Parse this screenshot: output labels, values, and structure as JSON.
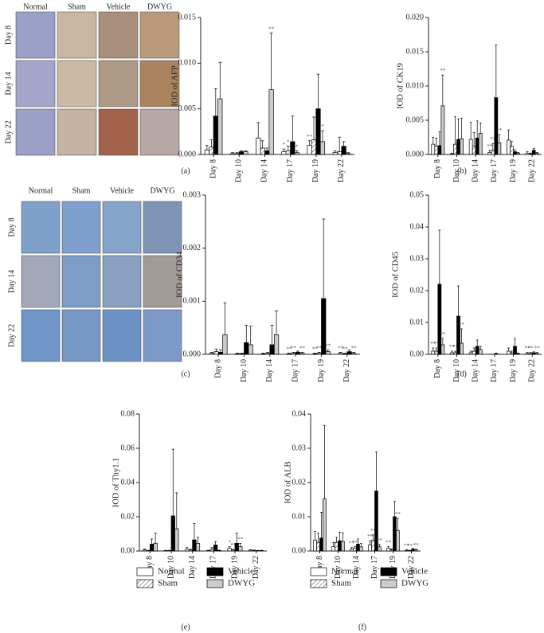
{
  "image_panels": [
    {
      "columns": [
        "Normal",
        "Sham",
        "Vehicle",
        "DWYG"
      ],
      "rows": [
        "Day 8",
        "Day 14",
        "Day 22"
      ]
    },
    {
      "columns": [
        "Normal",
        "Sham",
        "Vehicle",
        "DWYG"
      ],
      "rows": [
        "Day 8",
        "Day 14",
        "Day 22"
      ]
    }
  ],
  "chart_data": [
    {
      "type": "bar",
      "panel_label": "(a)",
      "y_label": "IOD of AFP",
      "categories": [
        "Day 8",
        "Day 10",
        "Day 14",
        "Day 17",
        "Day 19",
        "Day 22"
      ],
      "ylim": [
        0,
        0.015
      ],
      "yticks": [
        {
          "value": 0,
          "label": "0.000"
        },
        {
          "value": 0.005,
          "label": "0.005"
        },
        {
          "value": 0.01,
          "label": "0.010"
        },
        {
          "value": 0.015,
          "label": "0.015"
        }
      ],
      "legend": false,
      "series": [
        {
          "name": "Normal",
          "color": "#ffffff",
          "values": [
            0.0005,
            0.0001,
            0.0018,
            0.0003,
            0.001,
            0.0002
          ],
          "errors": [
            0.0005,
            0.0001,
            0.0017,
            0.0003,
            0.0005,
            0.0002
          ],
          "significance": [
            null,
            null,
            null,
            "*",
            "**",
            null
          ]
        },
        {
          "name": "Sham",
          "color": "#ffffff",
          "pattern": "hatch",
          "values": [
            0.0008,
            0.0001,
            0.0007,
            0.0004,
            0.0016,
            0.0003
          ],
          "errors": [
            0.0008,
            0.0001,
            0.0008,
            0.0005,
            0.0025,
            0.0016
          ],
          "significance": [
            null,
            null,
            null,
            "*",
            null,
            null
          ]
        },
        {
          "name": "Vehicle",
          "color": "#000000",
          "values": [
            0.0042,
            0.0003,
            0.0004,
            0.0014,
            0.005,
            0.0009
          ],
          "errors": [
            0.003,
            0.0001,
            0.0003,
            0.0028,
            0.0038,
            0.0005
          ],
          "significance": [
            null,
            null,
            null,
            null,
            null,
            null
          ]
        },
        {
          "name": "DWYG",
          "color": "#cccccc",
          "values": [
            0.0061,
            0.0003,
            0.0071,
            0.0002,
            0.0014,
            0.0001
          ],
          "errors": [
            0.004,
            0.0001,
            0.0062,
            0.0002,
            0.0012,
            0.0001
          ],
          "significance": [
            null,
            null,
            "**",
            "*",
            "*",
            null
          ]
        }
      ]
    },
    {
      "type": "bar",
      "panel_label": "(b)",
      "y_label": "IOD of CK19",
      "categories": [
        "Day 8",
        "Day 10",
        "Day 14",
        "Day 17",
        "Day 19",
        "Day 22"
      ],
      "ylim": [
        0,
        0.02
      ],
      "yticks": [
        {
          "value": 0,
          "label": "0.000"
        },
        {
          "value": 0.005,
          "label": "0.005"
        },
        {
          "value": 0.01,
          "label": "0.010"
        },
        {
          "value": 0.015,
          "label": "0.015"
        },
        {
          "value": 0.02,
          "label": "0.020"
        }
      ],
      "legend": false,
      "series": [
        {
          "name": "Normal",
          "color": "#ffffff",
          "values": [
            0.0015,
            0.0001,
            0.0022,
            0.0003,
            0.0021,
            0.0002
          ],
          "errors": [
            0.001,
            0.0001,
            0.0025,
            0.0003,
            0.0015,
            0.0002
          ],
          "significance": [
            null,
            null,
            null,
            "**",
            null,
            null
          ]
        },
        {
          "name": "Sham",
          "color": "#ffffff",
          "pattern": "hatch",
          "values": [
            0.0012,
            0.0015,
            0.0012,
            0.0006,
            0.0012,
            0.0001
          ],
          "errors": [
            0.0012,
            0.004,
            0.002,
            0.001,
            0.0007,
            0.0001
          ],
          "significance": [
            null,
            null,
            null,
            "**",
            null,
            null
          ]
        },
        {
          "name": "Vehicle",
          "color": "#000000",
          "values": [
            0.0013,
            0.0022,
            0.0024,
            0.0083,
            0.0004,
            0.0006
          ],
          "errors": [
            0.002,
            0.003,
            0.0025,
            0.0077,
            0.0003,
            0.0003
          ],
          "significance": [
            null,
            null,
            null,
            null,
            null,
            null
          ]
        },
        {
          "name": "DWYG",
          "color": "#cccccc",
          "values": [
            0.0071,
            0.0023,
            0.0031,
            0.0017,
            0.0002,
            0.0002
          ],
          "errors": [
            0.0045,
            0.003,
            0.0015,
            0.0012,
            0.0001,
            0.0001
          ],
          "significance": [
            "**",
            null,
            null,
            "**",
            null,
            null
          ]
        }
      ]
    },
    {
      "type": "bar",
      "panel_label": "(c)",
      "y_label": "IOD of CD34",
      "categories": [
        "Day 8",
        "Day 10",
        "Day 14",
        "Day 17",
        "Day 19",
        "Day 22"
      ],
      "ylim": [
        0,
        0.003
      ],
      "yticks": [
        {
          "value": 0,
          "label": "0.000"
        },
        {
          "value": 0.001,
          "label": "0.001"
        },
        {
          "value": 0.002,
          "label": "0.002"
        },
        {
          "value": 0.003,
          "label": "0.003"
        }
      ],
      "legend": false,
      "series": [
        {
          "name": "Normal",
          "color": "#ffffff",
          "values": [
            2e-05,
            1e-05,
            1e-05,
            1e-05,
            1e-05,
            2e-05
          ],
          "errors": [
            2e-05,
            1e-05,
            1e-05,
            1e-05,
            1e-05,
            2e-05
          ],
          "significance": [
            null,
            null,
            null,
            "**",
            "**",
            "**"
          ]
        },
        {
          "name": "Sham",
          "color": "#ffffff",
          "pattern": "hatch",
          "values": [
            5e-05,
            1e-05,
            2e-05,
            2e-05,
            2e-05,
            1e-05
          ],
          "errors": [
            5e-05,
            1e-05,
            2e-05,
            2e-05,
            2e-05,
            1e-05
          ],
          "significance": [
            null,
            null,
            null,
            "**",
            "**",
            "**"
          ]
        },
        {
          "name": "Vehicle",
          "color": "#000000",
          "values": [
            4e-05,
            0.00022,
            0.00018,
            4e-05,
            0.00105,
            5e-05
          ],
          "errors": [
            4e-05,
            0.00033,
            0.00037,
            2e-05,
            0.0015,
            3e-05
          ],
          "significance": [
            null,
            null,
            null,
            null,
            null,
            null
          ]
        },
        {
          "name": "DWYG",
          "color": "#cccccc",
          "values": [
            0.00037,
            0.00018,
            0.00037,
            2e-05,
            5e-05,
            2e-05
          ],
          "errors": [
            0.0006,
            0.00035,
            0.00045,
            2e-05,
            3e-05,
            2e-05
          ],
          "significance": [
            null,
            null,
            null,
            "**",
            "**",
            "**"
          ]
        }
      ]
    },
    {
      "type": "bar",
      "panel_label": "(d)",
      "y_label": "IOD of CD45",
      "categories": [
        "Day 8",
        "Day 10",
        "Day 14",
        "Day 17",
        "Day 19",
        "Day 22"
      ],
      "ylim": [
        0,
        0.05
      ],
      "yticks": [
        {
          "value": 0,
          "label": "0.00"
        },
        {
          "value": 0.01,
          "label": "0.01"
        },
        {
          "value": 0.02,
          "label": "0.02"
        },
        {
          "value": 0.03,
          "label": "0.03"
        },
        {
          "value": 0.04,
          "label": "0.04"
        },
        {
          "value": 0.05,
          "label": "0.05"
        }
      ],
      "legend": false,
      "series": [
        {
          "name": "Normal",
          "color": "#ffffff",
          "values": [
            0.001,
            0.0005,
            0.0005,
            0,
            0.001,
            0.0003
          ],
          "errors": [
            0.001,
            0.0005,
            0.0005,
            0,
            0.001,
            0.0003
          ],
          "significance": [
            "**",
            "**",
            null,
            null,
            null,
            "**"
          ]
        },
        {
          "name": "Sham",
          "color": "#ffffff",
          "pattern": "hatch",
          "values": [
            0.001,
            0.0005,
            0.001,
            0,
            0.0005,
            0.0003
          ],
          "errors": [
            0.001,
            0.0005,
            0.001,
            0,
            0.0005,
            0.0003
          ],
          "significance": [
            "**",
            "**",
            null,
            null,
            null,
            "**"
          ]
        },
        {
          "name": "Vehicle",
          "color": "#000000",
          "values": [
            0.022,
            0.012,
            0.0025,
            0.0002,
            0.0025,
            0.0005
          ],
          "errors": [
            0.017,
            0.0095,
            0.002,
            0.0002,
            0.0025,
            0.0003
          ],
          "significance": [
            null,
            null,
            null,
            null,
            null,
            null
          ]
        },
        {
          "name": "DWYG",
          "color": "#cccccc",
          "values": [
            0.003,
            0.0035,
            0.0015,
            0,
            0.0002,
            0.0003
          ],
          "errors": [
            0.002,
            0.0045,
            0.001,
            0,
            0.0002,
            0.0003
          ],
          "significance": [
            "**",
            "**",
            null,
            null,
            null,
            "**"
          ]
        }
      ]
    },
    {
      "type": "bar",
      "panel_label": "(e)",
      "y_label": "IOD of Thy1.1",
      "categories": [
        "Day 8",
        "Day 10",
        "Day 14",
        "Day 17",
        "Day 19",
        "Day 22"
      ],
      "ylim": [
        0,
        0.08
      ],
      "yticks": [
        {
          "value": 0,
          "label": "0.00"
        },
        {
          "value": 0.02,
          "label": "0.02"
        },
        {
          "value": 0.04,
          "label": "0.04"
        },
        {
          "value": 0.06,
          "label": "0.06"
        },
        {
          "value": 0.08,
          "label": "0.08"
        }
      ],
      "legend": true,
      "series": [
        {
          "name": "Normal",
          "color": "#ffffff",
          "values": [
            0.0006,
            0.0002,
            0.001,
            0.0002,
            0.0015,
            0.0005
          ],
          "errors": [
            0.0005,
            0.0002,
            0.001,
            0.0002,
            0.001,
            0.0003
          ],
          "significance": [
            null,
            null,
            null,
            null,
            "*",
            null
          ]
        },
        {
          "name": "Sham",
          "color": "#ffffff",
          "pattern": "hatch",
          "values": [
            0.0002,
            0.0002,
            0.0005,
            0.001,
            0.0005,
            0.0003
          ],
          "errors": [
            0.0002,
            0.0002,
            0.0005,
            0.001,
            0.0005,
            0.0002
          ],
          "significance": [
            null,
            null,
            null,
            null,
            "**",
            null
          ]
        },
        {
          "name": "Vehicle",
          "color": "#000000",
          "values": [
            0.004,
            0.0205,
            0.0065,
            0.0035,
            0.0045,
            0.0002
          ],
          "errors": [
            0.003,
            0.039,
            0.0095,
            0.002,
            0.006,
            0.0002
          ],
          "significance": [
            null,
            null,
            null,
            null,
            null,
            null
          ]
        },
        {
          "name": "DWYG",
          "color": "#cccccc",
          "values": [
            0.0045,
            0.013,
            0.0045,
            0.0003,
            0.0025,
            0.0002
          ],
          "errors": [
            0.006,
            0.021,
            0.0035,
            0.0002,
            0.002,
            0.0002
          ],
          "significance": [
            null,
            null,
            null,
            null,
            "**",
            null
          ]
        }
      ]
    },
    {
      "type": "bar",
      "panel_label": "(f)",
      "y_label": "IOD of ALB",
      "categories": [
        "Day 8",
        "Day 10",
        "Day 14",
        "Day 17",
        "Day 19",
        "Day 22"
      ],
      "ylim": [
        0,
        0.04
      ],
      "yticks": [
        {
          "value": 0,
          "label": "0.00"
        },
        {
          "value": 0.01,
          "label": "0.01"
        },
        {
          "value": 0.02,
          "label": "0.02"
        },
        {
          "value": 0.03,
          "label": "0.03"
        },
        {
          "value": 0.04,
          "label": "0.04"
        }
      ],
      "legend": true,
      "series": [
        {
          "name": "Normal",
          "color": "#ffffff",
          "values": [
            0.0032,
            0.0013,
            0.0005,
            0.0018,
            0.0008,
            0.0002
          ],
          "errors": [
            0.0025,
            0.0012,
            0.0005,
            0.0012,
            0.0005,
            0.0002
          ],
          "significance": [
            null,
            null,
            "**",
            "**",
            "**",
            "**"
          ]
        },
        {
          "name": "Sham",
          "color": "#ffffff",
          "pattern": "hatch",
          "values": [
            0.0025,
            0.0025,
            0.0008,
            0.0032,
            0.0003,
            0.0001
          ],
          "errors": [
            0.0028,
            0.0015,
            0.0005,
            0.0015,
            0.0003,
            0.0001
          ],
          "significance": [
            null,
            null,
            "**",
            "**",
            null,
            "**"
          ]
        },
        {
          "name": "Vehicle",
          "color": "#000000",
          "values": [
            0.0038,
            0.003,
            0.002,
            0.0175,
            0.01,
            0.0005
          ],
          "errors": [
            0.0075,
            0.0025,
            0.0015,
            0.0115,
            0.0045,
            0.0003
          ],
          "significance": [
            null,
            null,
            null,
            null,
            null,
            null
          ]
        },
        {
          "name": "DWYG",
          "color": "#cccccc",
          "values": [
            0.0152,
            0.0028,
            0.0012,
            0.0012,
            0.006,
            0.0003
          ],
          "errors": [
            0.0215,
            0.0025,
            0.001,
            0.0007,
            0.0035,
            0.0002
          ],
          "significance": [
            null,
            null,
            null,
            "**",
            "**",
            "**"
          ]
        }
      ]
    }
  ]
}
